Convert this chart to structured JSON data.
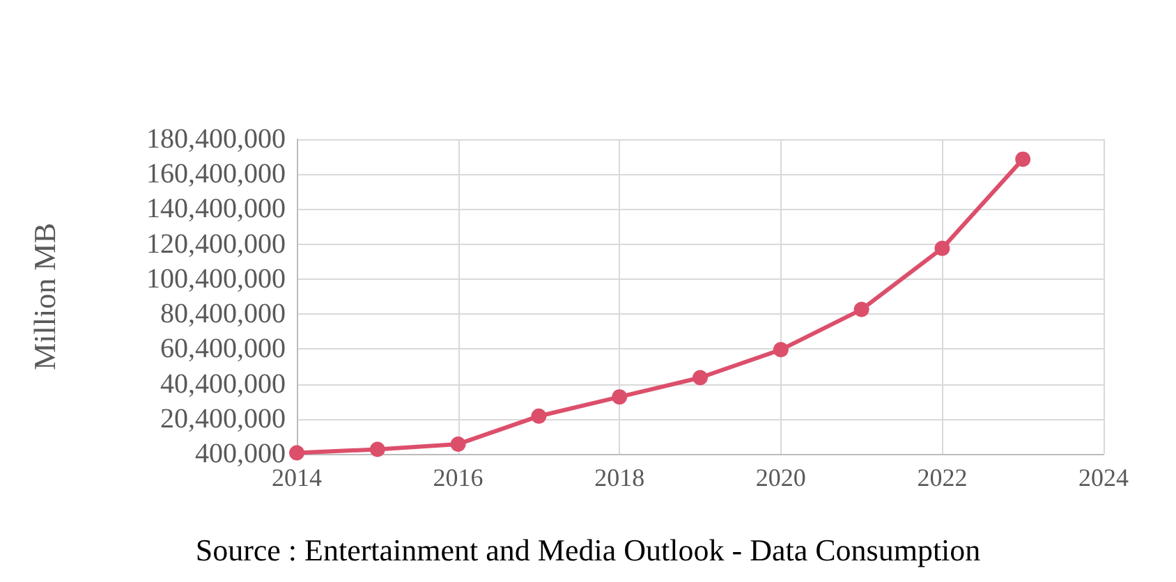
{
  "chart_data": {
    "type": "line",
    "ylabel": "Million MB",
    "x": [
      2014,
      2015,
      2016,
      2017,
      2018,
      2019,
      2020,
      2021,
      2022,
      2023
    ],
    "series": [
      {
        "color": "#dc4f6b",
        "values": [
          1000000,
          3000000,
          6000000,
          22000000,
          33000000,
          44000000,
          60000000,
          83000000,
          118000000,
          169000000
        ]
      }
    ],
    "xlim": [
      2014,
      2024
    ],
    "xticks": [
      2014,
      2016,
      2018,
      2020,
      2022,
      2024
    ],
    "ylim": [
      400000,
      180400000
    ],
    "yticks": [
      {
        "value": 400000,
        "label": "400,000"
      },
      {
        "value": 20400000,
        "label": "20,400,000"
      },
      {
        "value": 40400000,
        "label": "40,400,000"
      },
      {
        "value": 60400000,
        "label": "60,400,000"
      },
      {
        "value": 80400000,
        "label": "80,400,000"
      },
      {
        "value": 100400000,
        "label": "100,400,000"
      },
      {
        "value": 120400000,
        "label": "120,400,000"
      },
      {
        "value": 140400000,
        "label": "140,400,000"
      },
      {
        "value": 160400000,
        "label": "160,400,000"
      },
      {
        "value": 180400000,
        "label": "180,400,000"
      }
    ],
    "grid": true,
    "marker": "circle",
    "line_style": "solid",
    "annotations": [
      "Source : Entertainment and Media Outlook - Data Consumption"
    ]
  }
}
